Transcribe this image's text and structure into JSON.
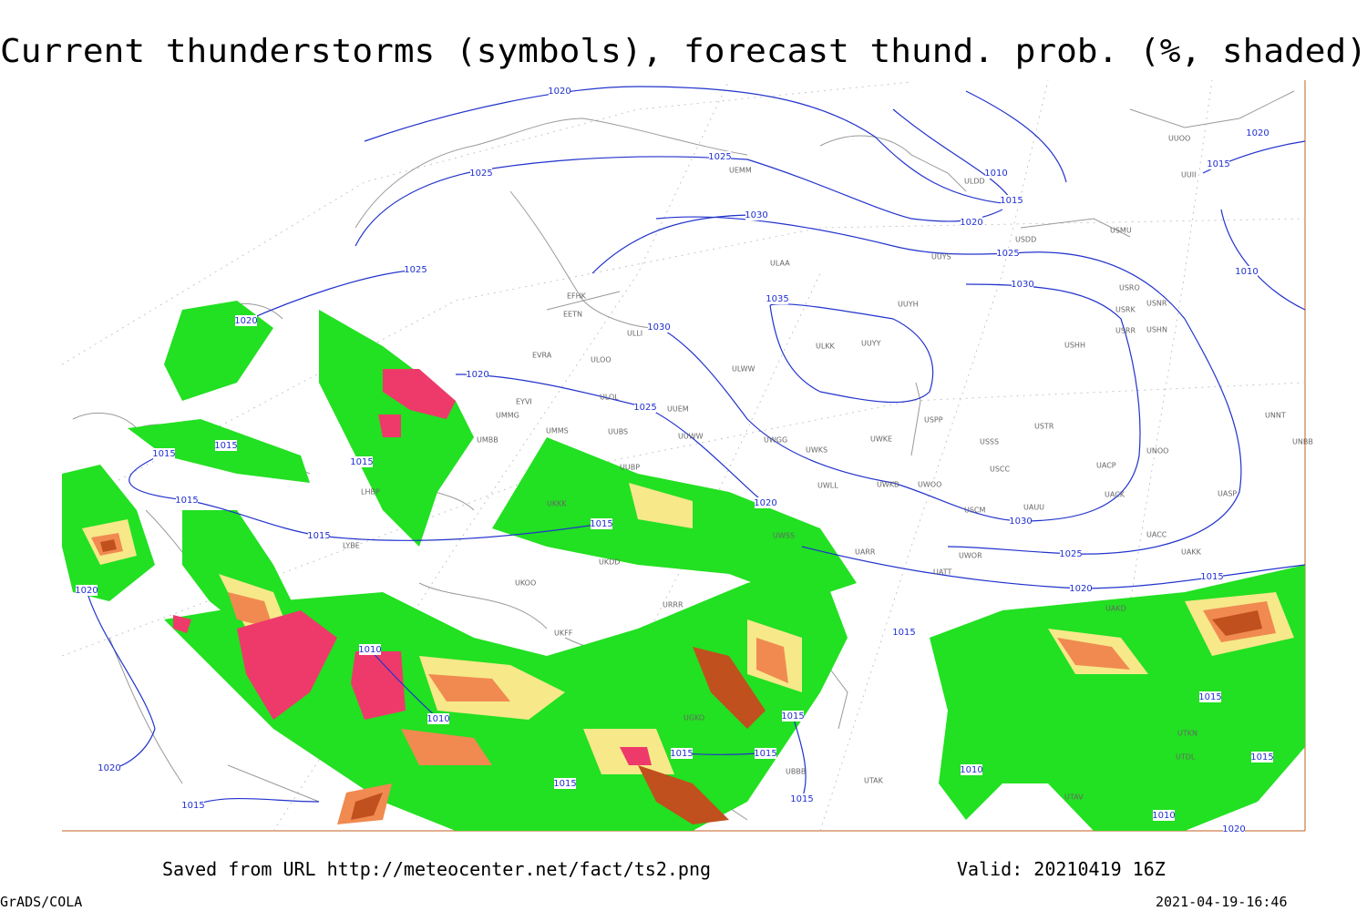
{
  "header": {
    "title": "Current thunderstorms (symbols), forecast thund. prob. (%, shaded)"
  },
  "isobar_labels": [
    "1020",
    "1025",
    "1025",
    "1030",
    "1025",
    "1020",
    "1030",
    "1020",
    "1025",
    "1015",
    "1015",
    "1015",
    "1015",
    "1015",
    "1015",
    "1020",
    "1020",
    "1035",
    "1010",
    "1015",
    "1020",
    "1025",
    "1030",
    "1030",
    "1025",
    "1020",
    "1015",
    "1010",
    "1020",
    "1015",
    "1015",
    "1010",
    "1010",
    "1015",
    "1015",
    "1015",
    "1015",
    "1015",
    "1015",
    "1020",
    "1010",
    "1015",
    "1015",
    "1010",
    "1020"
  ],
  "station_labels": [
    "UEMM",
    "ULDD",
    "USDD",
    "USMU",
    "UUYS",
    "ULAA",
    "UUYH",
    "USRO",
    "USRK",
    "USNR",
    "USRR",
    "USHN",
    "EFHK",
    "EETN",
    "ULLI",
    "EVRA",
    "ULOO",
    "ULKK",
    "UUYY",
    "USHH",
    "ULWW",
    "ULOL",
    "EYVI",
    "UUEM",
    "UMMG",
    "USPP",
    "USTR",
    "UNNT",
    "UMMS",
    "UUBS",
    "UUWW",
    "UMBB",
    "USSS",
    "UNOO",
    "UNBB",
    "UWGG",
    "UWKS",
    "UWKE",
    "UUBP",
    "USCC",
    "UACP",
    "UWKB",
    "UWOO",
    "UWLL",
    "UACK",
    "UASP",
    "UKKK",
    "USCM",
    "UAUU",
    "UWSS",
    "UACC",
    "UARR",
    "UWOR",
    "UAKK",
    "UATT",
    "UKOO",
    "UKDD",
    "URRR",
    "UAKD",
    "UKFF",
    "LYBE",
    "LHBP",
    "UTAK",
    "UTAV",
    "UBBB",
    "UTDL",
    "UTKN",
    "UGKO",
    "UUOO",
    "UUII"
  ],
  "footer": {
    "source": "Saved from URL http://meteocenter.net/fact/ts2.png",
    "valid": "Valid: 20210419 16Z",
    "software": "GrADS/COLA",
    "timestamp": "2021-04-19-16:46"
  }
}
